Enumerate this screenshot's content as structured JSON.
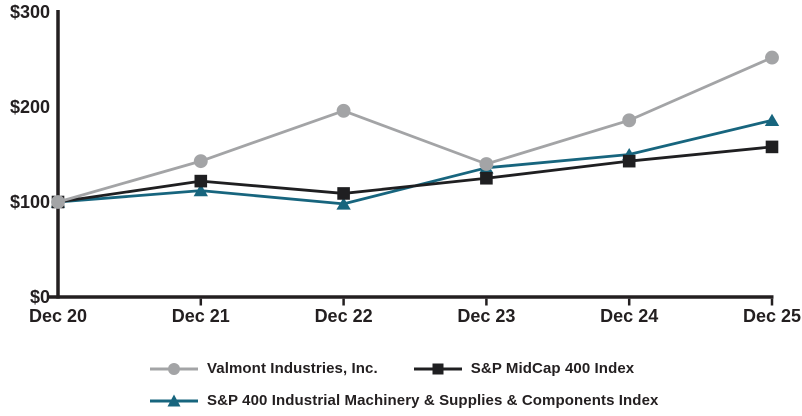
{
  "chart_data": {
    "type": "line",
    "title": "",
    "x_categories": [
      "Dec 20",
      "Dec 21",
      "Dec 22",
      "Dec 23",
      "Dec 24",
      "Dec 25"
    ],
    "y_ticks": [
      {
        "label": "$0",
        "value": 0
      },
      {
        "label": "$100",
        "value": 100
      },
      {
        "label": "$200",
        "value": 200
      },
      {
        "label": "$300",
        "value": 300
      }
    ],
    "ylim": [
      0,
      300
    ],
    "grid": false,
    "legend_position": "bottom",
    "axis_color": "#231f20",
    "series": [
      {
        "name": "Valmont Industries, Inc.",
        "marker": "circle",
        "color": "#a3a4a6",
        "values": [
          100,
          143,
          196,
          140,
          186,
          252
        ]
      },
      {
        "name": "S&P MidCap 400 Index",
        "marker": "square",
        "color": "#1f1f21",
        "values": [
          100,
          122,
          109,
          125,
          143,
          158
        ]
      },
      {
        "name": "S&P 400 Industrial Machinery & Supplies & Components Index",
        "marker": "triangle",
        "color": "#17657e",
        "values": [
          100,
          112,
          98,
          136,
          150,
          186
        ]
      }
    ]
  }
}
